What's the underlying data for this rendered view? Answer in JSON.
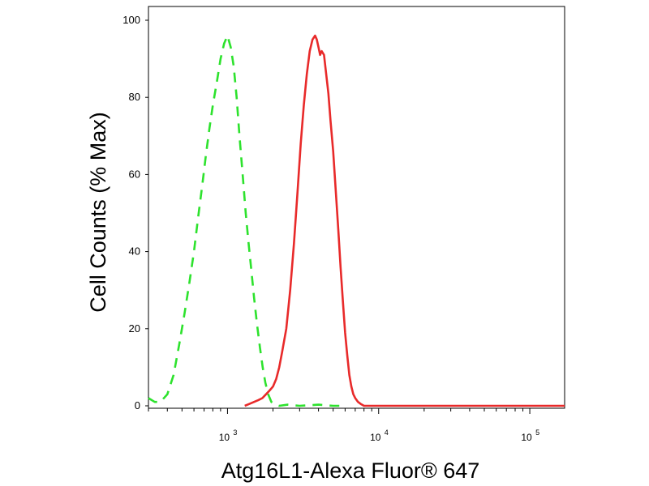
{
  "chart_data": {
    "type": "line",
    "title": "",
    "xlabel": "Atg16L1-Alexa Fluor® 647",
    "ylabel": "Cell Counts (% Max)",
    "x_scale": "log",
    "xlim": [
      300,
      170000
    ],
    "ylim": [
      0,
      100
    ],
    "yticks": [
      "0",
      "20",
      "40",
      "60",
      "80",
      "100"
    ],
    "xticks": [
      {
        "base": "10",
        "exp": "3",
        "value": 1000
      },
      {
        "base": "10",
        "exp": "4",
        "value": 10000
      },
      {
        "base": "10",
        "exp": "5",
        "value": 100000
      }
    ],
    "grid": false,
    "legend": "none",
    "series": [
      {
        "color": "#2de22d",
        "style": "dashed",
        "x": [
          300,
          330,
          360,
          400,
          440,
          480,
          520,
          560,
          600,
          640,
          680,
          720,
          760,
          800,
          850,
          900,
          950,
          1000,
          1050,
          1100,
          1150,
          1200,
          1260,
          1320,
          1380,
          1440,
          1500,
          1570,
          1640,
          1710,
          1780,
          1860,
          1950,
          2050,
          2200,
          2500,
          3000,
          4000,
          5000,
          6000
        ],
        "y": [
          2,
          1,
          1,
          3,
          8,
          16,
          24,
          32,
          40,
          49,
          57,
          65,
          72,
          78,
          84,
          90,
          94,
          96,
          93,
          88,
          80,
          70,
          60,
          50,
          42,
          35,
          28,
          21,
          15,
          10,
          6,
          3,
          1,
          0.4,
          0,
          0.3,
          0,
          0.3,
          0,
          0
        ]
      },
      {
        "color": "#e82a2a",
        "style": "solid",
        "x": [
          1300,
          1400,
          1500,
          1600,
          1700,
          1800,
          1900,
          2000,
          2100,
          2200,
          2300,
          2450,
          2600,
          2750,
          2900,
          3050,
          3200,
          3350,
          3500,
          3650,
          3800,
          3900,
          4000,
          4100,
          4200,
          4350,
          4500,
          4650,
          4800,
          5000,
          5200,
          5400,
          5600,
          5800,
          6000,
          6200,
          6400,
          6600,
          6800,
          7000,
          7300,
          7600,
          8000,
          9000,
          10000,
          20000,
          50000,
          100000,
          170000
        ],
        "y": [
          0,
          0.5,
          1,
          1.5,
          2,
          3,
          4,
          5,
          7,
          10,
          14,
          20,
          30,
          42,
          55,
          68,
          78,
          86,
          92,
          95,
          96,
          95,
          93,
          91,
          92,
          91,
          86,
          81,
          74,
          66,
          56,
          46,
          36,
          27,
          19,
          13,
          8,
          5,
          3,
          2,
          1,
          0.5,
          0,
          0,
          0,
          0,
          0,
          0,
          0
        ]
      }
    ]
  }
}
